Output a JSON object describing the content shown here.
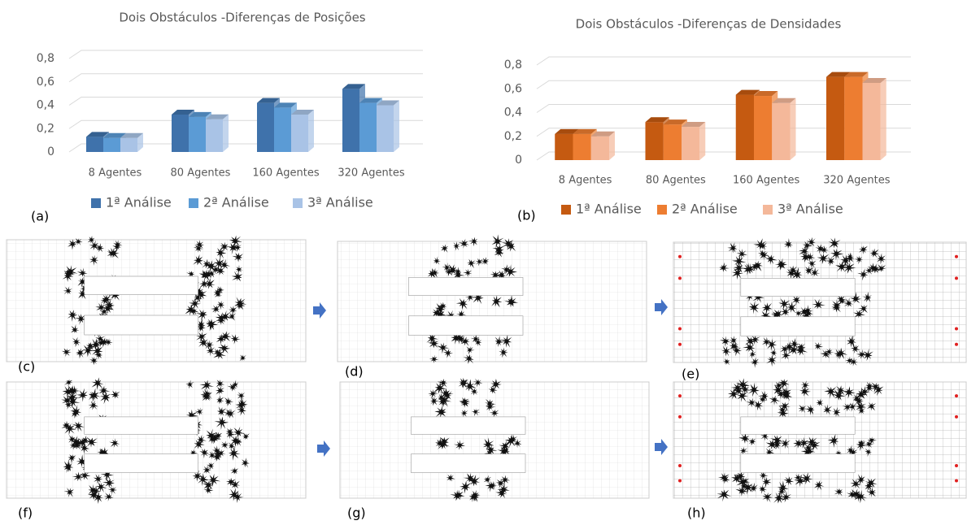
{
  "chart_data": [
    {
      "type": "bar",
      "title": "Dois Obstáculos -Diferenças de Posições",
      "categories": [
        "8 Agentes",
        "80 Agentes",
        "160 Agentes",
        "320 Agentes"
      ],
      "series": [
        {
          "name": "1ª Análise",
          "color": "#3f72ab",
          "values": [
            0.13,
            0.32,
            0.42,
            0.54
          ]
        },
        {
          "name": "2ª Análise",
          "color": "#5b9bd5",
          "values": [
            0.12,
            0.3,
            0.38,
            0.42
          ]
        },
        {
          "name": "3ª Análise",
          "color": "#a9c3e6",
          "values": [
            0.12,
            0.28,
            0.32,
            0.4
          ]
        }
      ],
      "ylim": [
        0,
        0.8
      ],
      "yticks": [
        0,
        {
          "value": 0.2,
          "label": "0,2"
        },
        {
          "value": 0.4,
          "label": "0,4"
        },
        {
          "value": 0.6,
          "label": "0,6"
        },
        {
          "value": 0.8,
          "label": "0,8"
        }
      ],
      "grid": true,
      "legend": "bottom"
    },
    {
      "type": "bar",
      "title": "Dois Obstáculos -Diferenças de Densidades",
      "categories": [
        "8 Agentes",
        "80 Agentes",
        "160 Agentes",
        "320 Agentes"
      ],
      "series": [
        {
          "name": "1ª Análise",
          "color": "#c55a11",
          "values": [
            0.22,
            0.32,
            0.55,
            0.7
          ]
        },
        {
          "name": "2ª Análise",
          "color": "#ed7d31",
          "values": [
            0.22,
            0.3,
            0.54,
            0.7
          ]
        },
        {
          "name": "3ª Análise",
          "color": "#f4b89a",
          "values": [
            0.2,
            0.28,
            0.48,
            0.65
          ]
        }
      ],
      "ylim": [
        0,
        0.8
      ],
      "yticks": [
        0,
        {
          "value": 0.2,
          "label": "0,2"
        },
        {
          "value": 0.4,
          "label": "0,4"
        },
        {
          "value": 0.6,
          "label": "0,6"
        },
        {
          "value": 0.8,
          "label": "0,8"
        }
      ],
      "grid": true,
      "legend": "bottom"
    }
  ],
  "panel_labels": [
    "(a)",
    "(b)",
    "(c)",
    "(d)",
    "(e)",
    "(f)",
    "(g)",
    "(h)"
  ]
}
